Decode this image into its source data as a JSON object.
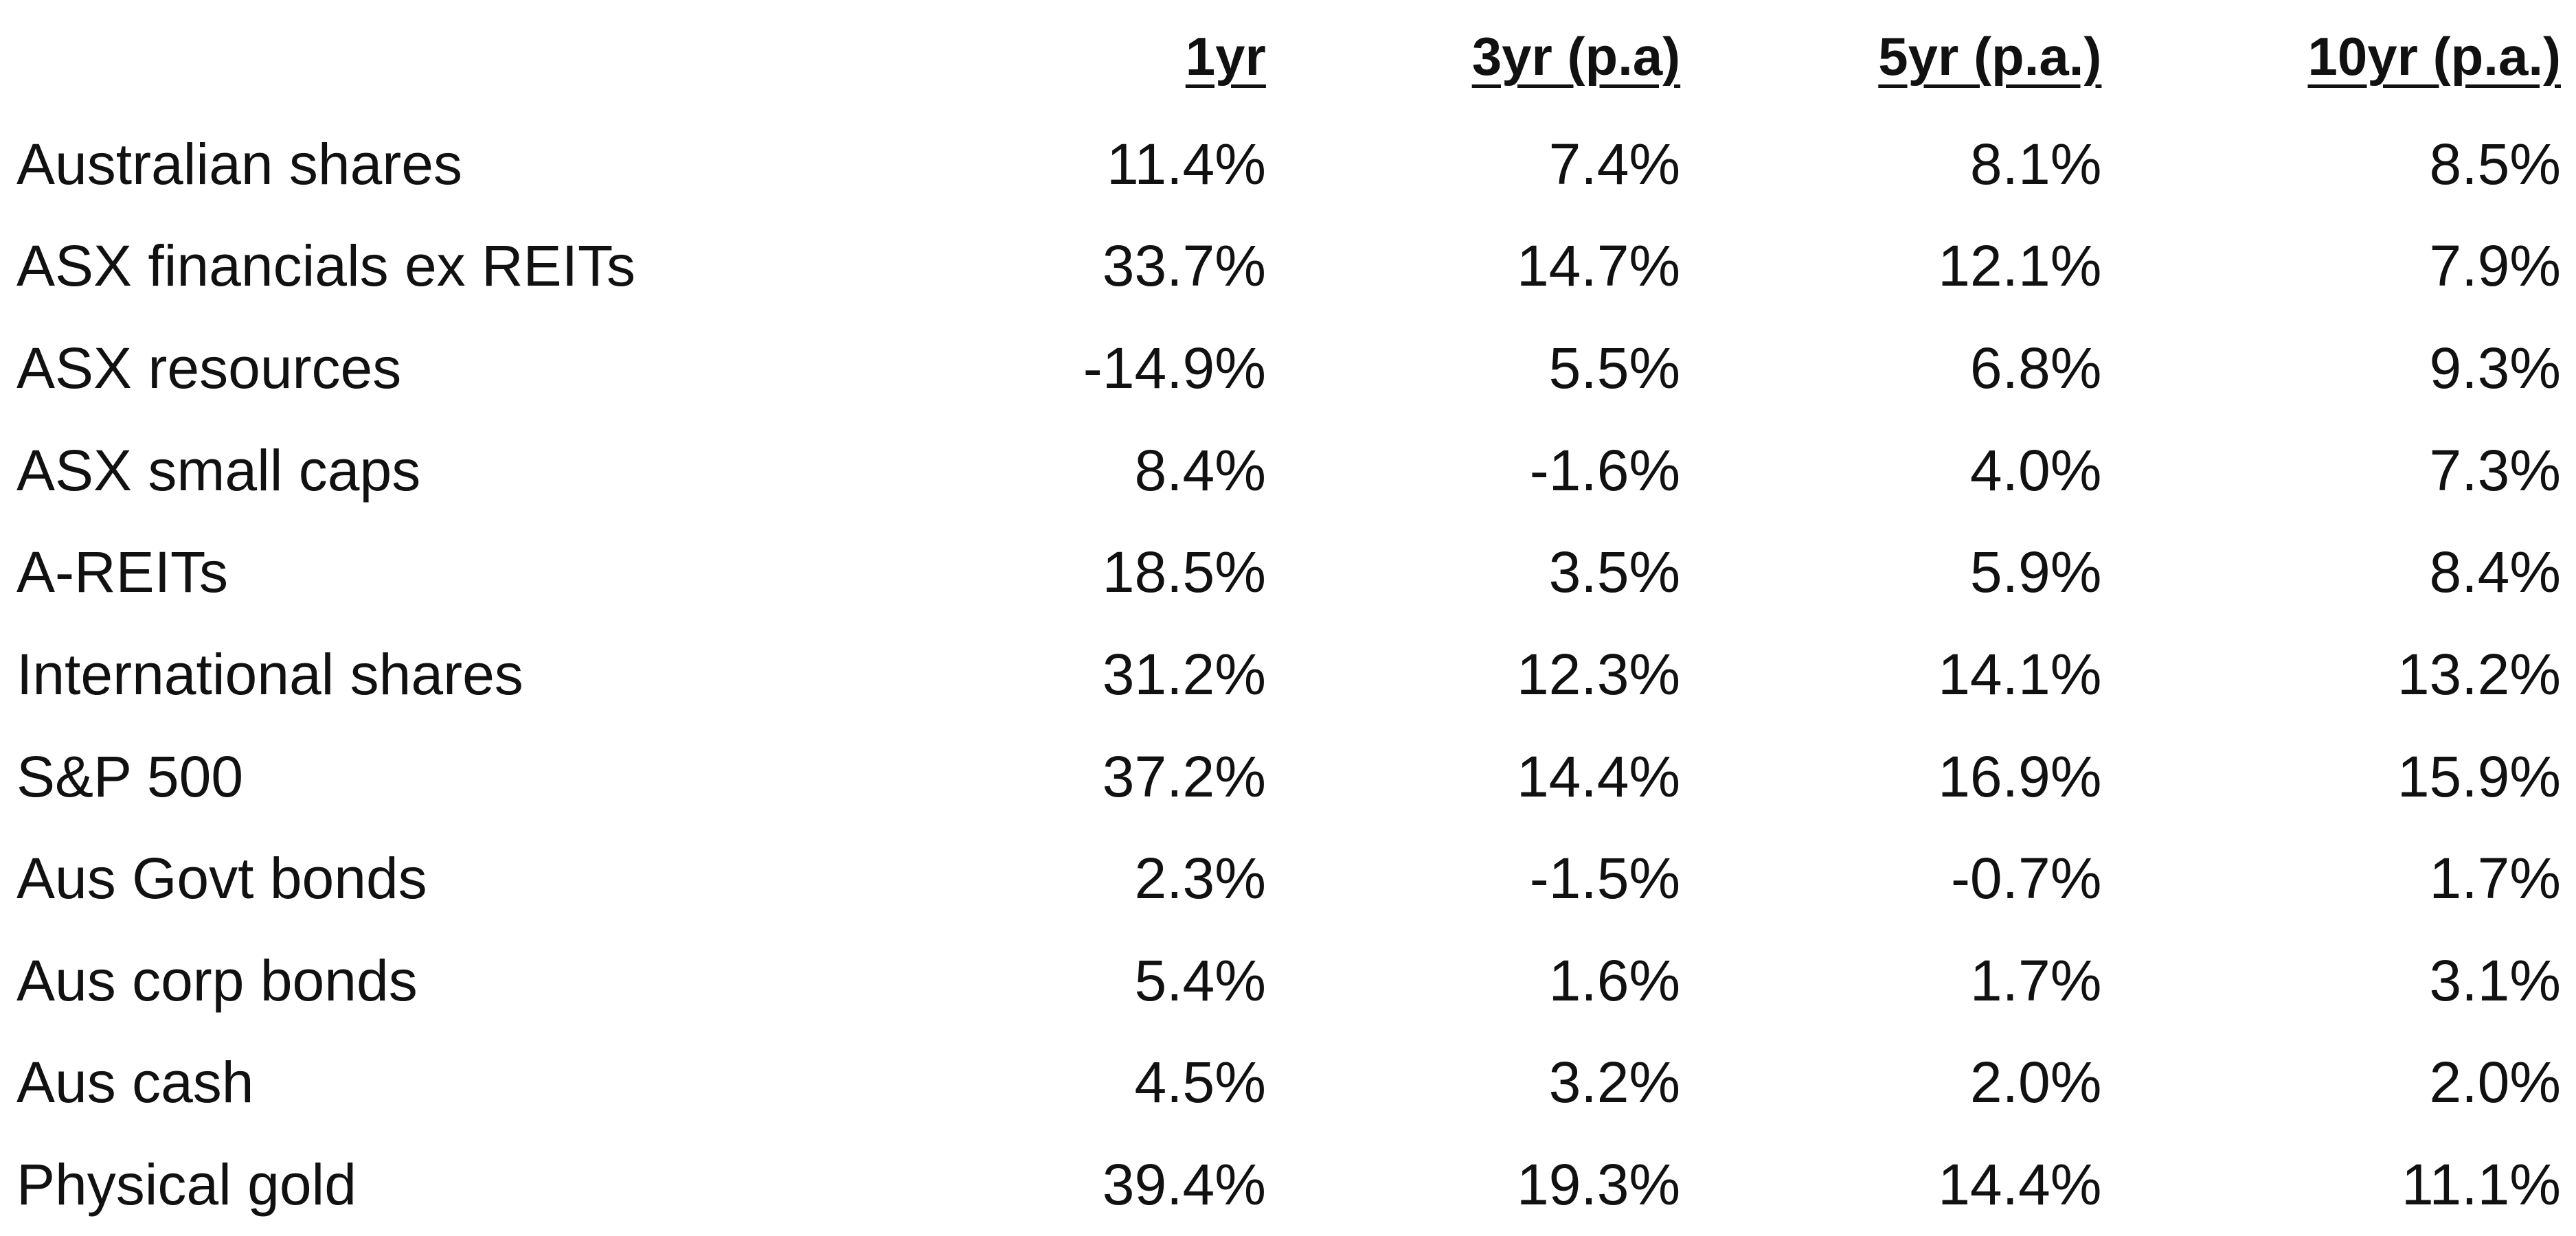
{
  "table": {
    "headers": [
      "1yr",
      "3yr (p.a)",
      "5yr (p.a.)",
      "10yr (p.a.)"
    ],
    "rows": [
      {
        "asset": "Australian shares",
        "values": [
          "11.4%",
          "7.4%",
          "8.1%",
          "8.5%"
        ]
      },
      {
        "asset": "ASX financials ex REITs",
        "values": [
          "33.7%",
          "14.7%",
          "12.1%",
          "7.9%"
        ]
      },
      {
        "asset": "ASX resources",
        "values": [
          "-14.9%",
          "5.5%",
          "6.8%",
          "9.3%"
        ]
      },
      {
        "asset": "ASX small caps",
        "values": [
          "8.4%",
          "-1.6%",
          "4.0%",
          "7.3%"
        ]
      },
      {
        "asset": "A-REITs",
        "values": [
          "18.5%",
          "3.5%",
          "5.9%",
          "8.4%"
        ]
      },
      {
        "asset": "International shares",
        "values": [
          "31.2%",
          "12.3%",
          "14.1%",
          "13.2%"
        ]
      },
      {
        "asset": "S&P 500",
        "values": [
          "37.2%",
          "14.4%",
          "16.9%",
          "15.9%"
        ]
      },
      {
        "asset": "Aus Govt bonds",
        "values": [
          "2.3%",
          "-1.5%",
          "-0.7%",
          "1.7%"
        ]
      },
      {
        "asset": "Aus corp bonds",
        "values": [
          "5.4%",
          "1.6%",
          "1.7%",
          "3.1%"
        ]
      },
      {
        "asset": "Aus cash",
        "values": [
          "4.5%",
          "3.2%",
          "2.0%",
          "2.0%"
        ]
      },
      {
        "asset": "Physical gold",
        "values": [
          "39.4%",
          "19.3%",
          "14.4%",
          "11.1%"
        ]
      }
    ]
  }
}
